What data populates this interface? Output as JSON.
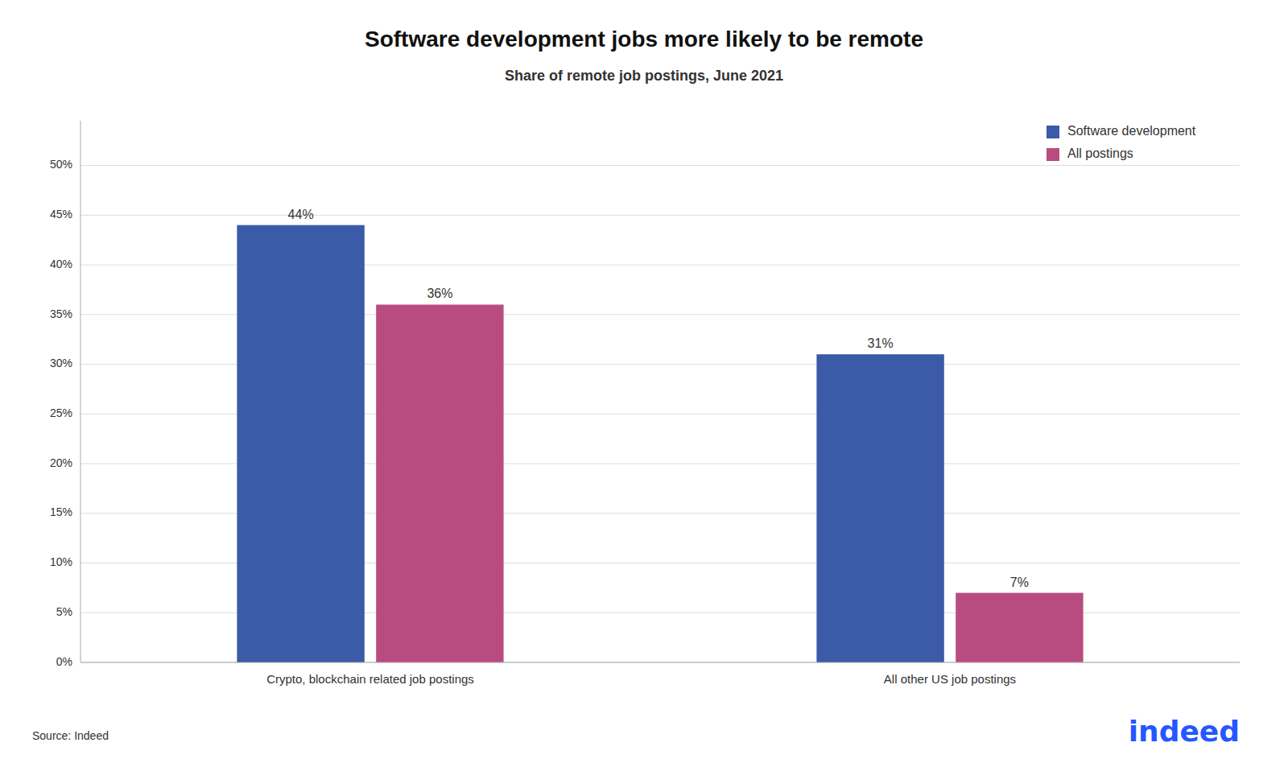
{
  "chart_data": {
    "type": "bar",
    "title": "Software development jobs more likely to be remote",
    "subtitle": "Share of remote job postings, June 2021",
    "categories": [
      "Crypto, blockchain related job postings",
      "All other US job postings"
    ],
    "series": [
      {
        "name": "Software development",
        "color": "#3B5BA8",
        "values": [
          0.44,
          0.31
        ],
        "value_labels": [
          "44%",
          "31%"
        ]
      },
      {
        "name": "All postings",
        "color": "#B84C80",
        "values": [
          0.36,
          0.07
        ],
        "value_labels": [
          "36%",
          "7%"
        ]
      }
    ],
    "ylim": [
      0,
      0.545
    ],
    "yticks": [
      {
        "value": 0.0,
        "label": "0%"
      },
      {
        "value": 0.05,
        "label": "5%"
      },
      {
        "value": 0.1,
        "label": "10%"
      },
      {
        "value": 0.15,
        "label": "15%"
      },
      {
        "value": 0.2,
        "label": "20%"
      },
      {
        "value": 0.25,
        "label": "25%"
      },
      {
        "value": 0.3,
        "label": "30%"
      },
      {
        "value": 0.35,
        "label": "35%"
      },
      {
        "value": 0.4,
        "label": "40%"
      },
      {
        "value": 0.45,
        "label": "45%"
      },
      {
        "value": 0.5,
        "label": "50%"
      }
    ],
    "grid": true,
    "legend": "upper right",
    "data_labels": true,
    "annotations": [
      "Source: Indeed",
      "indeed"
    ]
  }
}
